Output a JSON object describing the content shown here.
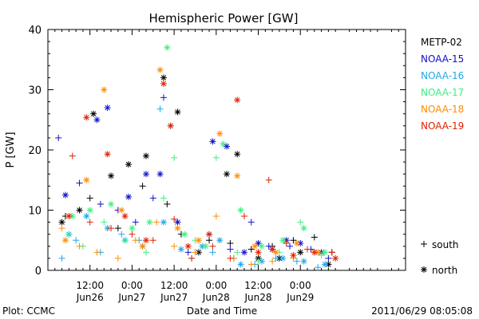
{
  "chart_data": {
    "type": "scatter",
    "title": "Hemispheric Power [GW]",
    "ylabel": "P [GW]",
    "xlabel": "Date and Time",
    "ylim": [
      0,
      40
    ],
    "yticks": [
      "0",
      "10",
      "20",
      "30",
      "40"
    ],
    "xlim_hours": [
      0,
      102
    ],
    "xticks": [
      {
        "hour": 12,
        "time": "12:00",
        "date": "Jun26"
      },
      {
        "hour": 24,
        "time": "0:00",
        "date": "Jun27"
      },
      {
        "hour": 36,
        "time": "12:00",
        "date": "Jun27"
      },
      {
        "hour": 48,
        "time": "0:00",
        "date": "Jun28"
      },
      {
        "hour": 60,
        "time": "12:00",
        "date": "Jun28"
      },
      {
        "hour": 72,
        "time": "0:00",
        "date": "Jun29"
      }
    ],
    "legend": {
      "placement": "right",
      "south_label": "south",
      "north_label": "north"
    },
    "series": [
      {
        "name": "METP-02",
        "color": "#000000",
        "north": [
          [
            4,
            8
          ],
          [
            9,
            10
          ],
          [
            13,
            26
          ],
          [
            18,
            15.7
          ],
          [
            23,
            17.6
          ],
          [
            28,
            19
          ],
          [
            33,
            32
          ],
          [
            37,
            26.3
          ],
          [
            43,
            3
          ],
          [
            51,
            16
          ],
          [
            54,
            19.3
          ],
          [
            60,
            2
          ],
          [
            66,
            2
          ],
          [
            72,
            3
          ],
          [
            80,
            1
          ]
        ],
        "south": [
          [
            5,
            9
          ],
          [
            12,
            12
          ],
          [
            20,
            7
          ],
          [
            27,
            14
          ],
          [
            34,
            11
          ],
          [
            38,
            6
          ],
          [
            46,
            5
          ],
          [
            52,
            4.5
          ],
          [
            58,
            3.5
          ],
          [
            64,
            4
          ],
          [
            70,
            5
          ],
          [
            76,
            5.5
          ],
          [
            81,
            3
          ]
        ]
      },
      {
        "name": "NOAA-15",
        "color": "#1010c8",
        "north": [
          [
            5,
            12.5
          ],
          [
            14,
            25
          ],
          [
            17,
            27
          ],
          [
            23,
            12.2
          ],
          [
            28,
            16
          ],
          [
            32,
            16
          ],
          [
            37,
            8
          ],
          [
            47,
            21.4
          ],
          [
            51,
            20.6
          ],
          [
            56,
            3
          ],
          [
            60,
            4.5
          ],
          [
            64,
            3.5
          ],
          [
            68,
            5
          ],
          [
            72,
            4.5
          ],
          [
            78,
            3
          ]
        ],
        "south": [
          [
            3,
            22
          ],
          [
            9,
            14.5
          ],
          [
            15,
            11
          ],
          [
            20,
            10
          ],
          [
            25,
            8
          ],
          [
            30,
            12
          ],
          [
            33,
            28.7
          ],
          [
            40,
            3
          ],
          [
            46,
            6
          ],
          [
            52,
            3.5
          ],
          [
            58,
            8
          ],
          [
            63,
            4
          ],
          [
            69,
            4
          ],
          [
            75,
            3.5
          ],
          [
            80,
            2
          ]
        ]
      },
      {
        "name": "NOAA-16",
        "color": "#1ea8e8",
        "north": [
          [
            6,
            6
          ],
          [
            11,
            9
          ],
          [
            17,
            7
          ],
          [
            22,
            5
          ],
          [
            27,
            4
          ],
          [
            33,
            8
          ],
          [
            38,
            3.5
          ],
          [
            44,
            4
          ],
          [
            49,
            5
          ],
          [
            55,
            1
          ],
          [
            61,
            1.5
          ],
          [
            67,
            2
          ],
          [
            73,
            1.5
          ],
          [
            79,
            1
          ]
        ],
        "south": [
          [
            4,
            2
          ],
          [
            8,
            5
          ],
          [
            15,
            3
          ],
          [
            21,
            6
          ],
          [
            26,
            5
          ],
          [
            32,
            26.8
          ],
          [
            35,
            24
          ],
          [
            41,
            2
          ],
          [
            47,
            3
          ],
          [
            53,
            2
          ],
          [
            59,
            1
          ],
          [
            65,
            2
          ],
          [
            71,
            1.5
          ],
          [
            77,
            0.5
          ]
        ]
      },
      {
        "name": "NOAA-17",
        "color": "#3cf080",
        "north": [
          [
            7,
            9
          ],
          [
            12,
            10
          ],
          [
            18,
            11
          ],
          [
            24,
            7
          ],
          [
            29,
            8
          ],
          [
            34,
            37
          ],
          [
            39,
            6
          ],
          [
            45,
            4
          ],
          [
            50,
            21
          ],
          [
            55,
            10
          ],
          [
            61,
            4
          ],
          [
            67,
            5
          ],
          [
            73,
            7
          ],
          [
            79,
            3
          ]
        ],
        "south": [
          [
            6,
            6
          ],
          [
            10,
            4
          ],
          [
            16,
            8
          ],
          [
            22,
            5
          ],
          [
            28,
            3
          ],
          [
            33,
            12
          ],
          [
            36,
            18.7
          ],
          [
            42,
            5
          ],
          [
            48,
            18.7
          ],
          [
            54,
            3
          ],
          [
            60,
            1.5
          ],
          [
            66,
            3
          ],
          [
            72,
            8
          ],
          [
            78,
            2.5
          ]
        ]
      },
      {
        "name": "NOAA-18",
        "color": "#ff8c00",
        "north": [
          [
            5,
            5
          ],
          [
            11,
            15
          ],
          [
            16,
            30
          ],
          [
            21,
            10
          ],
          [
            27,
            4
          ],
          [
            32,
            33.3
          ],
          [
            37,
            7
          ],
          [
            43,
            5
          ],
          [
            49,
            22.7
          ],
          [
            54,
            15.7
          ],
          [
            59,
            4
          ],
          [
            65,
            3
          ],
          [
            71,
            4.5
          ],
          [
            77,
            3
          ]
        ],
        "south": [
          [
            4,
            7
          ],
          [
            9,
            4
          ],
          [
            14,
            3
          ],
          [
            20,
            2
          ],
          [
            25,
            5
          ],
          [
            31,
            8
          ],
          [
            36,
            4
          ],
          [
            42,
            3
          ],
          [
            48,
            9
          ],
          [
            53,
            2
          ],
          [
            58,
            1
          ],
          [
            64,
            1.5
          ],
          [
            70,
            2
          ],
          [
            76,
            3
          ]
        ]
      },
      {
        "name": "NOAA-19",
        "color": "#e02000",
        "north": [
          [
            6,
            9
          ],
          [
            11,
            25.4
          ],
          [
            17,
            19.3
          ],
          [
            22,
            9
          ],
          [
            28,
            5
          ],
          [
            33,
            31
          ],
          [
            35,
            24
          ],
          [
            40,
            4
          ],
          [
            46,
            6
          ],
          [
            54,
            28.3
          ],
          [
            60,
            3
          ],
          [
            64,
            3.5
          ],
          [
            70,
            2.5
          ],
          [
            76,
            3
          ],
          [
            82,
            2
          ]
        ],
        "south": [
          [
            7,
            19
          ],
          [
            12,
            8
          ],
          [
            18,
            7
          ],
          [
            24,
            6
          ],
          [
            30,
            5
          ],
          [
            36,
            8.5
          ],
          [
            41,
            2
          ],
          [
            47,
            4
          ],
          [
            52,
            2
          ],
          [
            56,
            9
          ],
          [
            63,
            15
          ],
          [
            68,
            4.5
          ],
          [
            74,
            3.5
          ],
          [
            81,
            3
          ]
        ]
      }
    ]
  },
  "footer": {
    "plot_credit": "Plot: CCMC",
    "timestamp": "2011/06/29 08:05:08"
  }
}
